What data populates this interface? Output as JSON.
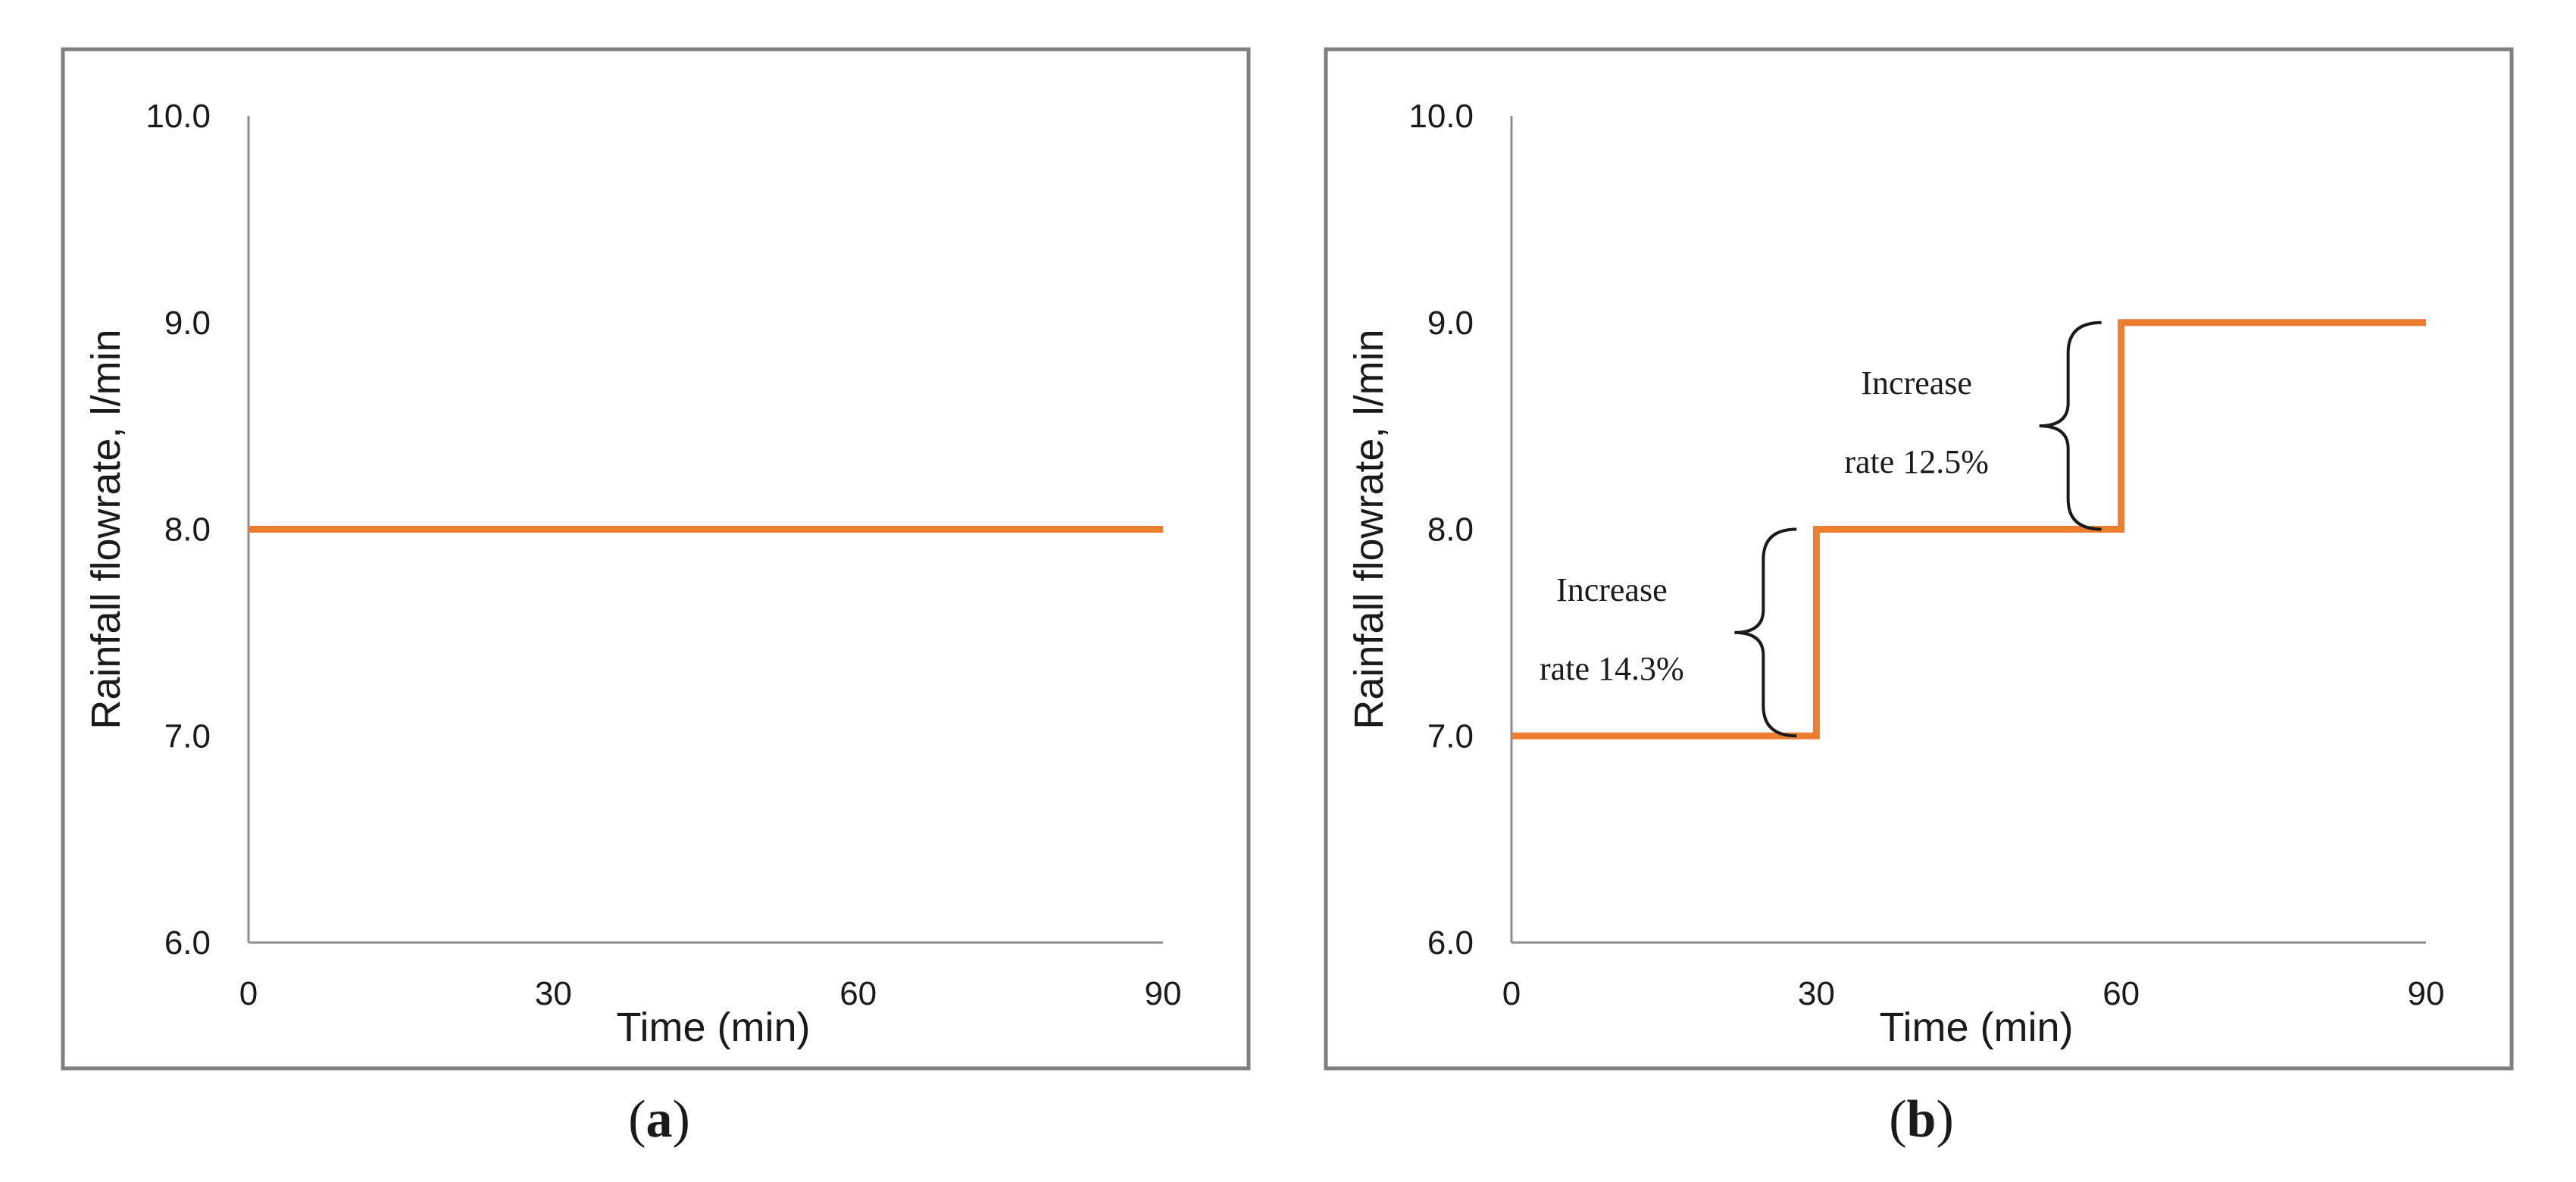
{
  "colors": {
    "series": "#ED7D31",
    "frame": "#7f7f7f",
    "axis": "#8c8c8c",
    "text": "#1a1a1a"
  },
  "chart_data": [
    {
      "type": "line",
      "panel_label": "a",
      "title": "",
      "xlabel": "Time (min)",
      "ylabel": "Rainfall flowrate, l/min",
      "xlim": [
        0,
        90
      ],
      "ylim": [
        6.0,
        10.0
      ],
      "x_ticks": [
        "0",
        "30",
        "60",
        "90"
      ],
      "y_ticks": [
        "6.0",
        "7.0",
        "8.0",
        "9.0",
        "10.0"
      ],
      "grid": false,
      "series": [
        {
          "name": "Rainfall flowrate",
          "x": [
            0,
            90
          ],
          "y": [
            8.0,
            8.0
          ]
        }
      ],
      "annotations": []
    },
    {
      "type": "line",
      "panel_label": "b",
      "title": "",
      "xlabel": "Time (min)",
      "ylabel": "Rainfall flowrate, l/min",
      "xlim": [
        0,
        90
      ],
      "ylim": [
        6.0,
        10.0
      ],
      "x_ticks": [
        "0",
        "30",
        "60",
        "90"
      ],
      "y_ticks": [
        "6.0",
        "7.0",
        "8.0",
        "9.0",
        "10.0"
      ],
      "grid": false,
      "series": [
        {
          "name": "Rainfall flowrate",
          "x": [
            0,
            30,
            30,
            60,
            60,
            90
          ],
          "y": [
            7.0,
            7.0,
            8.0,
            8.0,
            9.0,
            9.0
          ]
        }
      ],
      "annotations": [
        {
          "line1": "Increase",
          "line2": "rate 14.3%",
          "x": 30,
          "y_from": 7.0,
          "y_to": 8.0
        },
        {
          "line1": "Increase",
          "line2": "rate 12.5%",
          "x": 60,
          "y_from": 8.0,
          "y_to": 9.0
        }
      ]
    }
  ]
}
